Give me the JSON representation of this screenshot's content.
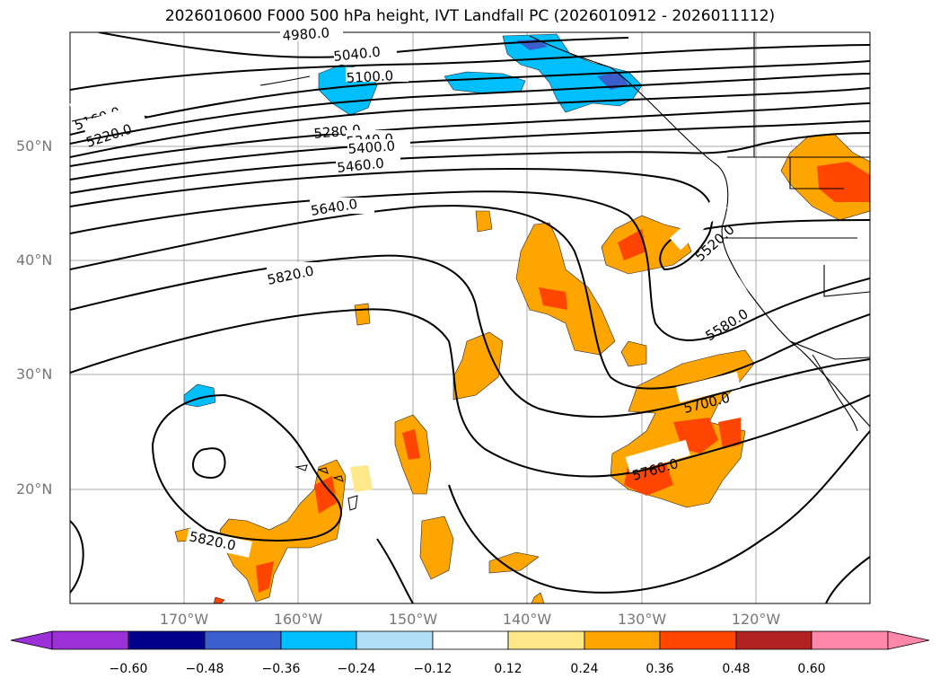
{
  "title": "2026010600 F000 500 hPa height, IVT Landfall PC (2026010912 - 2026011112)",
  "latitude_labels": [
    "50°N",
    "40°N",
    "30°N",
    "20°N"
  ],
  "longitude_labels": [
    "170°W",
    "160°W",
    "150°W",
    "140°W",
    "130°W",
    "120°W"
  ],
  "contour_labels": [
    "4980.0",
    "5040.0",
    "5100.0",
    "5160.0",
    "5220.0",
    "5280.0",
    "5340.0",
    "5400.0",
    "5460.0",
    "5640.0",
    "5820.0",
    "5520.0",
    "5580.0",
    "5700.0",
    "5760.0",
    "5820.0"
  ],
  "colorbar": {
    "ticks": [
      "−0.60",
      "−0.48",
      "−0.36",
      "−0.24",
      "−0.12",
      "0.12",
      "0.24",
      "0.36",
      "0.48",
      "0.60"
    ],
    "colors": [
      "#9b30d9",
      "#00008b",
      "#3a5fcd",
      "#00bfff",
      "#afe0f7",
      "#ffffff",
      "#ffe88a",
      "#ffa500",
      "#ff4500",
      "#b22222",
      "#ff88aa"
    ]
  }
}
